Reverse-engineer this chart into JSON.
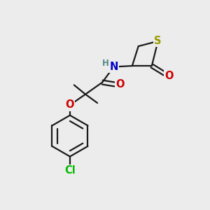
{
  "bg_color": "#ececec",
  "bond_color": "#1a1a1a",
  "bond_width": 1.6,
  "atom_colors": {
    "S": "#999900",
    "O": "#cc0000",
    "N": "#0000cc",
    "Cl": "#00bb00",
    "H": "#558888",
    "C": "#1a1a1a"
  },
  "font_size_atom": 10.5,
  "font_size_small": 8.5
}
